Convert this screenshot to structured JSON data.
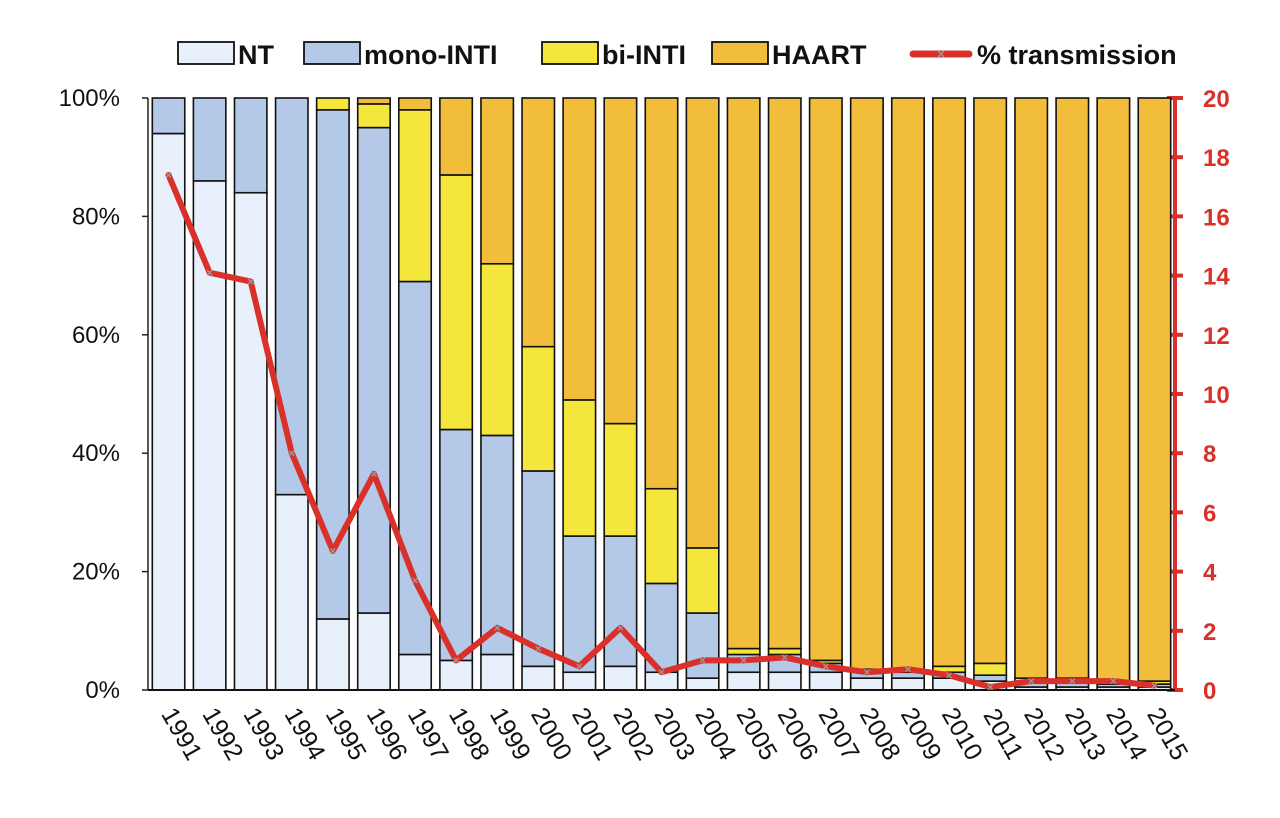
{
  "chart_data": {
    "type": "bar",
    "stacked": true,
    "percent_stacked": true,
    "categories": [
      "1991",
      "1992",
      "1993",
      "1994",
      "1995",
      "1996",
      "1997",
      "1998",
      "1999",
      "2000",
      "2001",
      "2002",
      "2003",
      "2004",
      "2005",
      "2006",
      "2007",
      "2008",
      "2009",
      "2010",
      "2011",
      "2012",
      "2013",
      "2014",
      "2015"
    ],
    "series": [
      {
        "name": "NT",
        "color": "#e8f0fb",
        "values": [
          94,
          86,
          84,
          33,
          12,
          13,
          6,
          5,
          6,
          4,
          3,
          4,
          3,
          2,
          3,
          3,
          3,
          2,
          2,
          2,
          1.5,
          0.5,
          0.5,
          0.5,
          0.5
        ]
      },
      {
        "name": "mono-INTI",
        "color": "#b3c9e7",
        "values": [
          6,
          14,
          16,
          67,
          86,
          82,
          63,
          39,
          37,
          33,
          23,
          22,
          15,
          11,
          3,
          3,
          1.5,
          1,
          1,
          1,
          1,
          1,
          1,
          0.5,
          0.5
        ]
      },
      {
        "name": "bi-INTI",
        "color": "#f5e63c",
        "values": [
          0,
          0,
          0,
          0,
          2,
          4,
          29,
          43,
          29,
          21,
          23,
          19,
          16,
          11,
          1,
          1,
          0.5,
          0.5,
          0.5,
          1,
          2,
          0.5,
          0.5,
          0.5,
          0.5
        ]
      },
      {
        "name": "HAART",
        "color": "#f2bd3a",
        "values": [
          0,
          0,
          0,
          0,
          0,
          1,
          2,
          13,
          28,
          42,
          51,
          55,
          66,
          76,
          93,
          93,
          95,
          96.5,
          96.5,
          96,
          95.5,
          98,
          98,
          98.5,
          98.5
        ]
      }
    ],
    "line_series": {
      "name": "% transmission",
      "color": "#d9302a",
      "axis": "right",
      "values": [
        17.4,
        14.1,
        13.8,
        8.0,
        4.7,
        7.3,
        3.7,
        1.0,
        2.1,
        1.4,
        0.8,
        2.1,
        0.6,
        1.0,
        1.0,
        1.1,
        0.8,
        0.6,
        0.7,
        0.5,
        0.1,
        0.3,
        0.3,
        0.3,
        0.15
      ]
    },
    "y_left": {
      "ticks": [
        "0%",
        "20%",
        "40%",
        "60%",
        "80%",
        "100%"
      ],
      "ylim": [
        0,
        100
      ]
    },
    "y_right": {
      "ticks": [
        "0",
        "2",
        "4",
        "6",
        "8",
        "10",
        "12",
        "14",
        "16",
        "18",
        "20"
      ],
      "ylim": [
        0,
        20
      ],
      "color": "#d9302a"
    },
    "legend": {
      "position": "top",
      "entries": [
        {
          "label": "NT",
          "kind": "box",
          "color": "#e8f0fb"
        },
        {
          "label": "mono-INTI",
          "kind": "box",
          "color": "#b3c9e7"
        },
        {
          "label": "bi-INTI",
          "kind": "box",
          "color": "#f5e63c"
        },
        {
          "label": "HAART",
          "kind": "box",
          "color": "#f2bd3a"
        },
        {
          "label": "% transmission",
          "kind": "line",
          "color": "#d9302a"
        }
      ]
    },
    "title": "",
    "xlabel": "",
    "ylabel": ""
  }
}
